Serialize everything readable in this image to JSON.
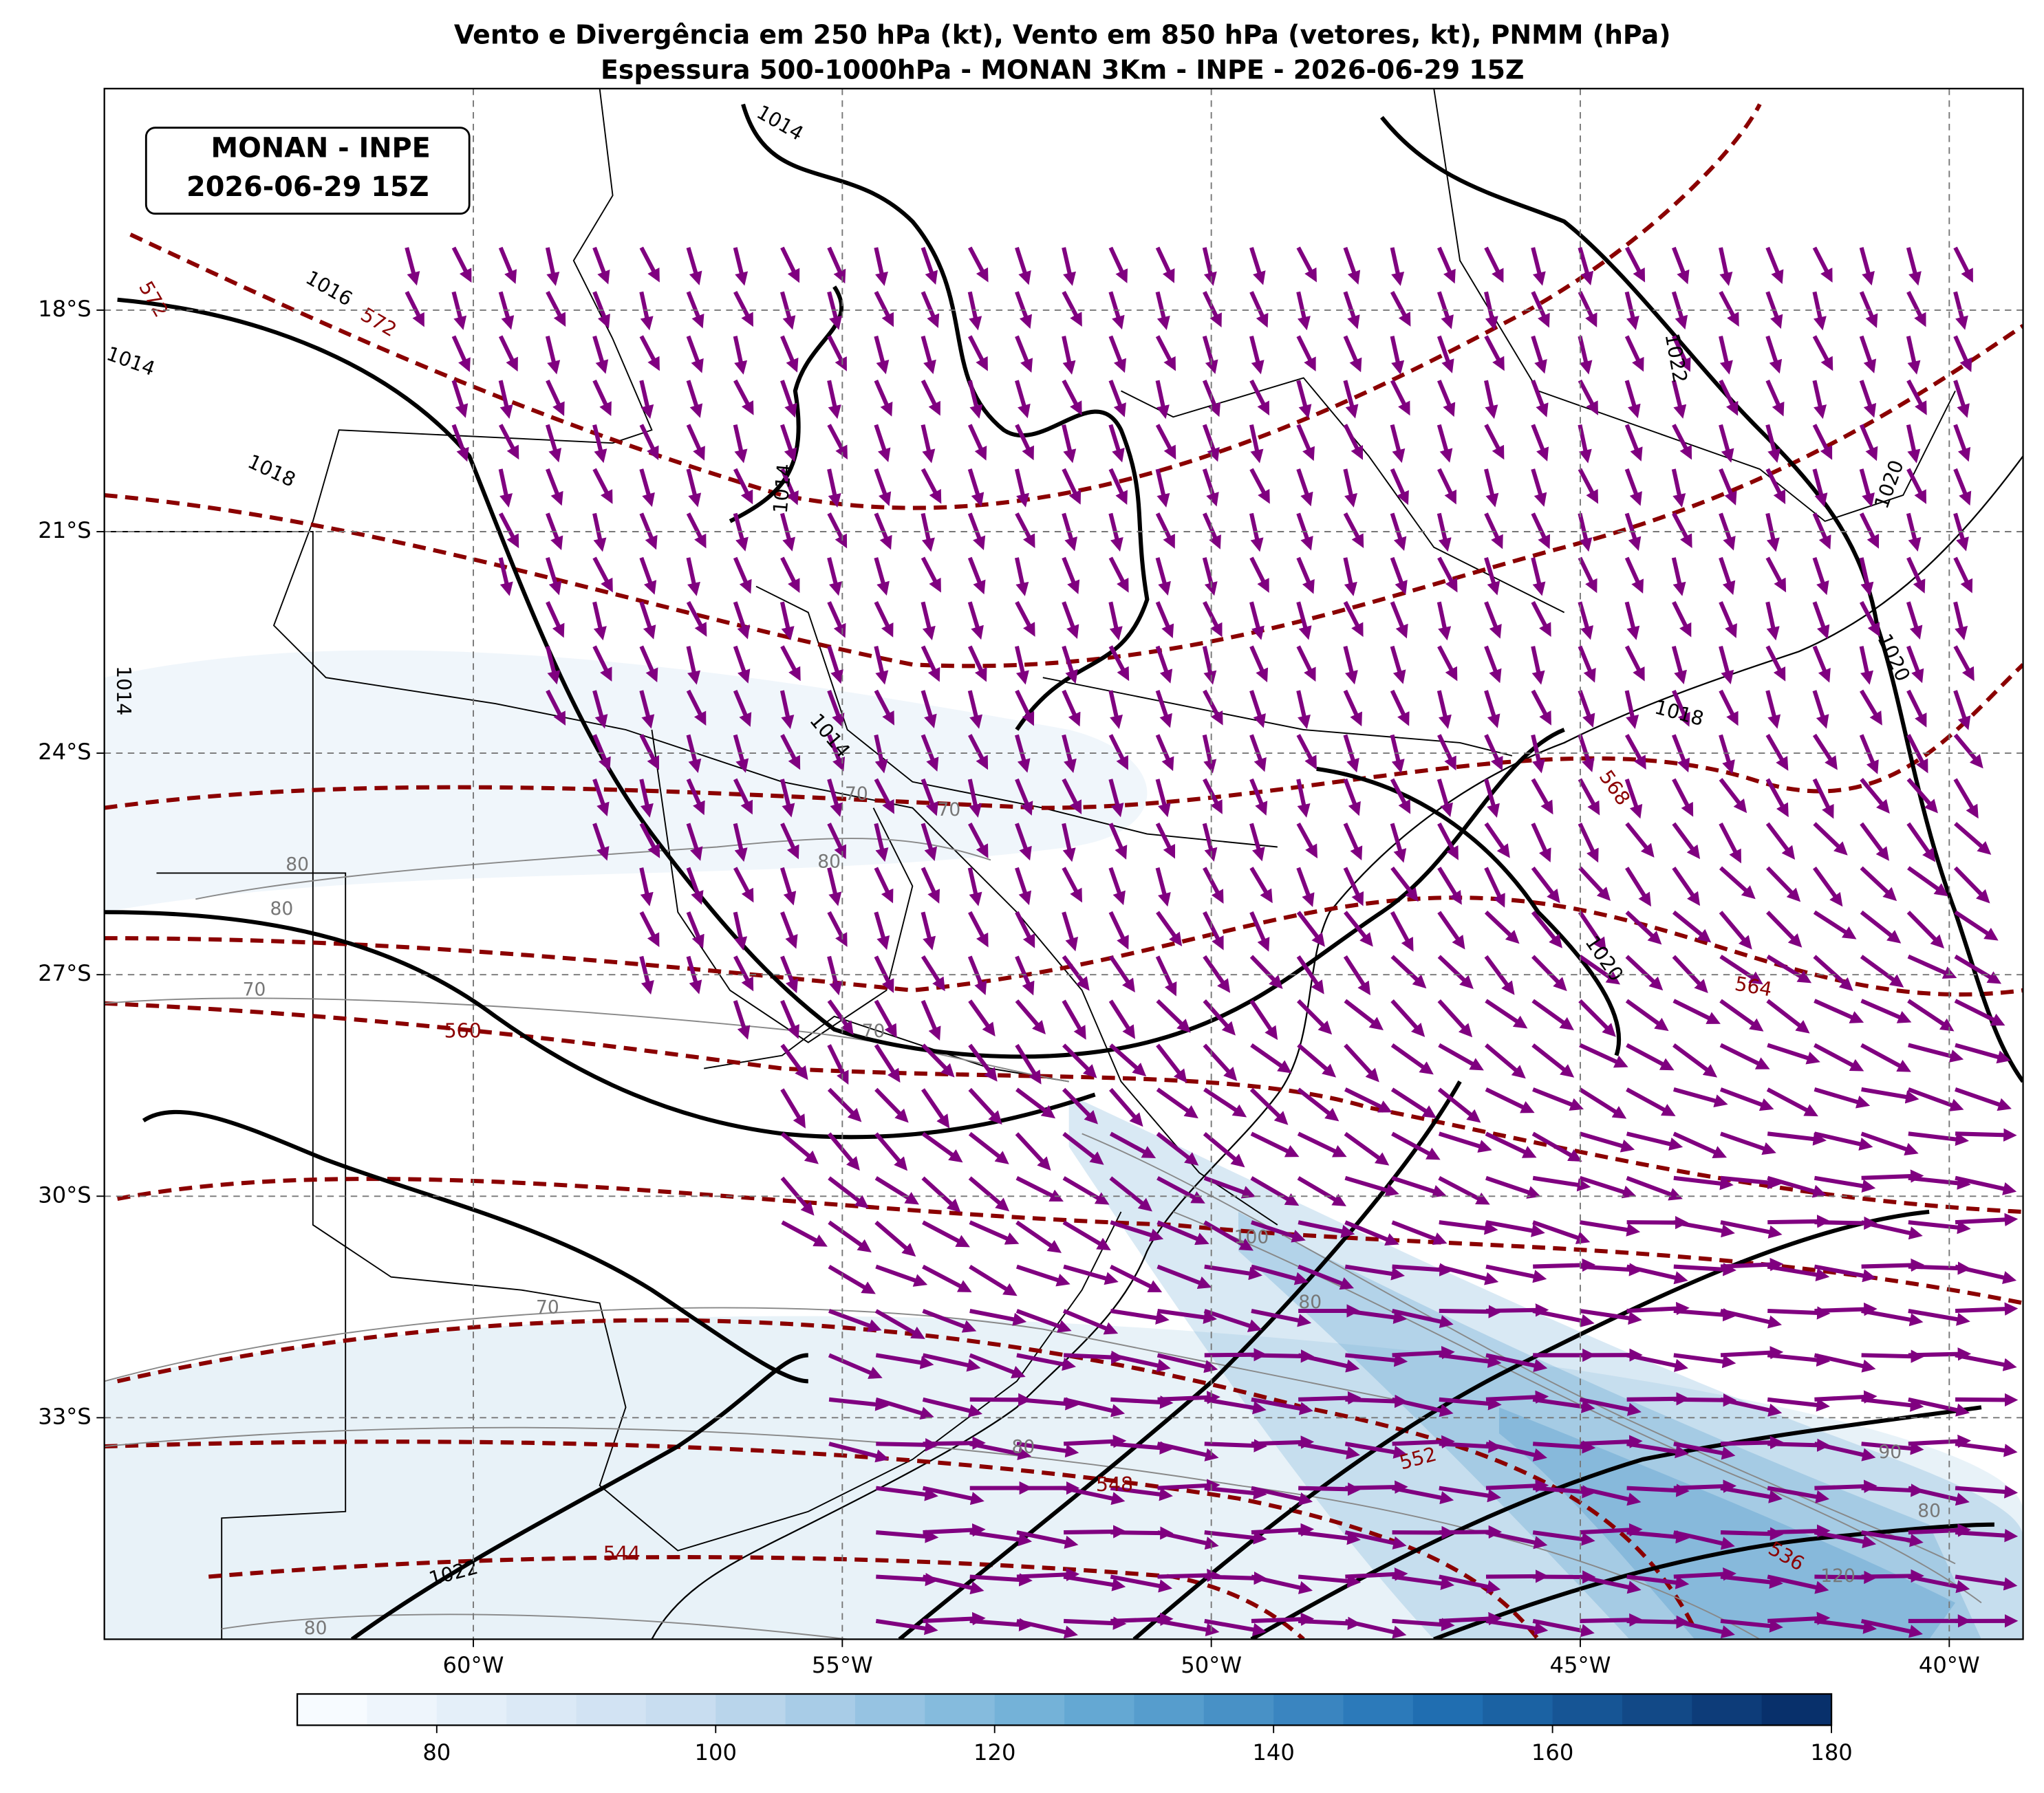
{
  "title_line1": "Vento e Divergência em 250 hPa (kt), Vento em 850 hPa (vetores, kt), PNMM (hPa)",
  "title_line2": "Espessura 500-1000hPa - MONAN 3Km - INPE - 2026-06-29 15Z",
  "inset_label": [
    "MONAN - INPE",
    "2026-06-29 15Z"
  ],
  "map": {
    "xlim": [
      -65,
      -39
    ],
    "ylim": [
      -36,
      -15
    ],
    "grid": true,
    "xticks": [
      {
        "value": -60,
        "label": "60°W"
      },
      {
        "value": -55,
        "label": "55°W"
      },
      {
        "value": -50,
        "label": "50°W"
      },
      {
        "value": -45,
        "label": "45°W"
      },
      {
        "value": -40,
        "label": "40°W"
      }
    ],
    "yticks": [
      {
        "value": -18,
        "label": "18°S"
      },
      {
        "value": -21,
        "label": "21°S"
      },
      {
        "value": -24,
        "label": "24°S"
      },
      {
        "value": -27,
        "label": "27°S"
      },
      {
        "value": -30,
        "label": "30°S"
      },
      {
        "value": -33,
        "label": "33°S"
      }
    ]
  },
  "colorbar": {
    "lim": [
      70,
      180
    ],
    "ticks": [
      80,
      100,
      120,
      140,
      160,
      180
    ]
  },
  "pressure_labels": [
    "1014",
    "1016",
    "1014",
    "1018",
    "1014",
    "1014",
    "1022",
    "1020",
    "1018",
    "1020",
    "1022",
    "1020",
    "1014"
  ],
  "thickness_labels": [
    "572",
    "572",
    "568",
    "564",
    "560",
    "552",
    "548",
    "544",
    "536"
  ],
  "wind_labels": [
    "80",
    "80",
    "70",
    "70",
    "70",
    "80",
    "100",
    "80",
    "70",
    "80",
    "80",
    "90",
    "120",
    "70",
    "80"
  ]
}
